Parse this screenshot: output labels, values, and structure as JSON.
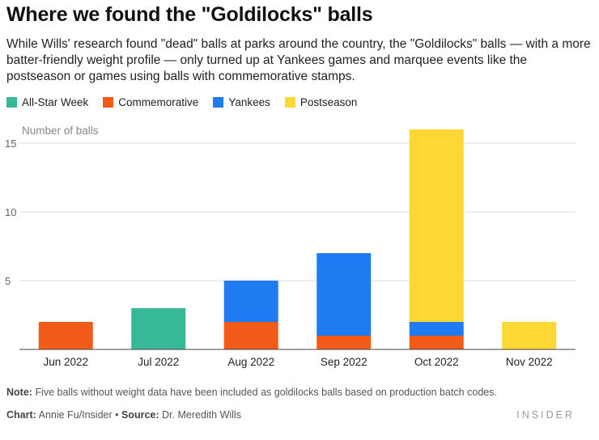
{
  "headline": "Where we found the \"Goldilocks\" balls",
  "dek": "While Wills' research found \"dead\" balls at parks around the country, the \"Goldilocks\" balls — with a more batter-friendly weight profile — only turned up at Yankees games and marquee events like the postseason or games using balls with commemorative stamps.",
  "legend": [
    {
      "label": "All-Star Week",
      "color": "#37b998"
    },
    {
      "label": "Commemorative",
      "color": "#f25a18"
    },
    {
      "label": "Yankees",
      "color": "#1e7bf2"
    },
    {
      "label": "Postseason",
      "color": "#fdd834"
    }
  ],
  "chart_data": {
    "type": "bar",
    "stacked": true,
    "ylabel": "Number of balls",
    "xlabel": "",
    "ylim": [
      0,
      16
    ],
    "yticks": [
      5,
      10,
      15
    ],
    "grid": true,
    "categories": [
      "Jun 2022",
      "Jul 2022",
      "Aug 2022",
      "Sep 2022",
      "Oct 2022",
      "Nov 2022"
    ],
    "series": [
      {
        "name": "Commemorative",
        "color": "#f25a18",
        "values": [
          2,
          0,
          2,
          1,
          1,
          0
        ]
      },
      {
        "name": "All-Star Week",
        "color": "#37b998",
        "values": [
          0,
          3,
          0,
          0,
          0,
          0
        ]
      },
      {
        "name": "Yankees",
        "color": "#1e7bf2",
        "values": [
          0,
          0,
          3,
          6,
          1,
          0
        ]
      },
      {
        "name": "Postseason",
        "color": "#fdd834",
        "values": [
          0,
          0,
          0,
          0,
          14,
          2
        ]
      }
    ]
  },
  "note_label": "Note:",
  "note_text": "Five balls without weight data have been included as goldilocks balls based on production batch codes.",
  "chart_label": "Chart:",
  "chart_author": "Annie Fu/Insider",
  "bullet": "•",
  "source_label": "Source:",
  "source_name": "Dr. Meredith Wills",
  "brand": "INSIDER"
}
